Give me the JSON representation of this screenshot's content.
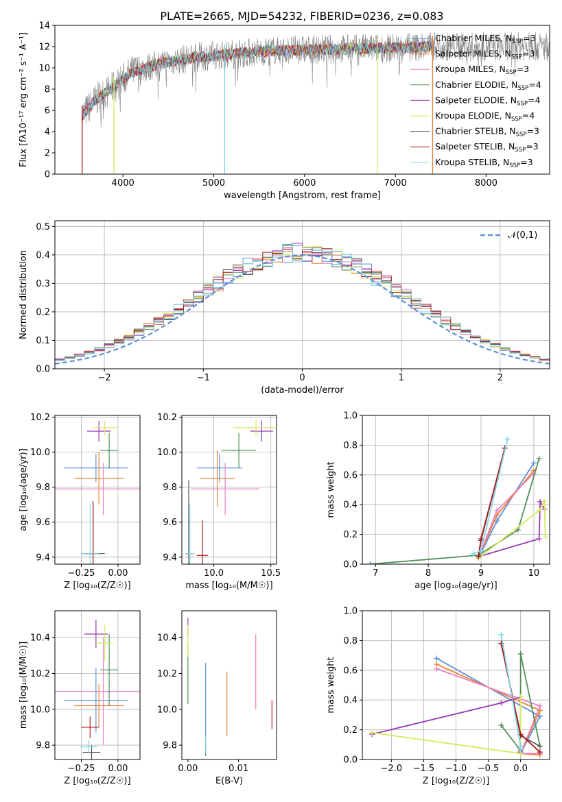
{
  "figure": {
    "title": "PLATE=2665, MJD=54232, FIBERID=0236, z=0.083"
  },
  "chart_data": [
    {
      "id": "spectrum",
      "type": "line",
      "xlabel": "wavelength [Angstrom, rest frame]",
      "ylabel": "Flux [fλ10⁻¹⁷ erg cm⁻² s⁻¹ A⁻¹]",
      "xlim": [
        3250,
        8700
      ],
      "ylim": [
        0,
        14
      ],
      "xticks": [
        4000,
        5000,
        6000,
        7000,
        8000
      ],
      "yticks": [
        0,
        2,
        4,
        6,
        8,
        10,
        12,
        14
      ],
      "grid": false,
      "legend_placement": "right",
      "continuum": [
        [
          3550,
          5.5
        ],
        [
          3700,
          7.0
        ],
        [
          3900,
          8.2
        ],
        [
          4100,
          9.6
        ],
        [
          4400,
          10.4
        ],
        [
          4800,
          11.0
        ],
        [
          5200,
          11.3
        ],
        [
          5600,
          11.6
        ],
        [
          6000,
          11.7
        ],
        [
          6500,
          11.8
        ],
        [
          7000,
          11.9
        ],
        [
          7400,
          12.0
        ]
      ],
      "observed_range": [
        3550,
        9000
      ],
      "model_range": [
        3550,
        7420
      ],
      "drop_lines": [
        3550,
        3900,
        5120,
        6800,
        7410
      ],
      "series": [
        {
          "name": "Chabrier MILES, N$_{SSP}$=3",
          "color": "#5b8fd9",
          "label": "Chabrier MILES, N",
          "sub": "SSP",
          "suffix": "=3"
        },
        {
          "name": "Salpeter MILES, N$_{SSP}$=3",
          "color": "#ee7f2d",
          "label": "Salpeter MILES, N",
          "sub": "SSP",
          "suffix": "=3"
        },
        {
          "name": "Kroupa MILES, N$_{SSP}$=3",
          "color": "#ef7fbf",
          "label": "Kroupa MILES, N",
          "sub": "SSP",
          "suffix": "=3"
        },
        {
          "name": "Chabrier ELODIE, N$_{SSP}$=4",
          "color": "#4f8f59",
          "label": "Chabrier ELODIE, N",
          "sub": "SSP",
          "suffix": "=4"
        },
        {
          "name": "Salpeter ELODIE, N$_{SSP}$=4",
          "color": "#9a36b0",
          "label": "Salpeter ELODIE, N",
          "sub": "SSP",
          "suffix": "=4"
        },
        {
          "name": "Kroupa ELODIE, N$_{SSP}$=4",
          "color": "#d6e85a",
          "label": "Kroupa ELODIE, N",
          "sub": "SSP",
          "suffix": "=4"
        },
        {
          "name": "Chabrier STELIB, N$_{SSP}$=3",
          "color": "#555555",
          "label": "Chabrier STELIB, N",
          "sub": "SSP",
          "suffix": "=3"
        },
        {
          "name": "Salpeter STELIB, N$_{SSP}$=3",
          "color": "#b01818",
          "label": "Salpeter STELIB, N",
          "sub": "SSP",
          "suffix": "=3"
        },
        {
          "name": "Kroupa STELIB, N$_{SSP}$=3",
          "color": "#7fd6e6",
          "label": "Kroupa STELIB, N",
          "sub": "SSP",
          "suffix": "=3"
        }
      ]
    },
    {
      "id": "residuals",
      "type": "line",
      "xlabel": "(data-model)/error",
      "ylabel": "Normed distribution",
      "xlim": [
        -2.5,
        2.5
      ],
      "ylim": [
        0,
        0.52
      ],
      "xticks": [
        -2,
        -1,
        0,
        1,
        2
      ],
      "yticks": [
        0.0,
        0.1,
        0.2,
        0.3,
        0.4,
        0.5
      ],
      "grid": true,
      "legend_placement": "top-right",
      "legend": [
        {
          "name": "𝒩(0,1)",
          "color": "#5b8fd9",
          "dash": true
        }
      ],
      "bin_width": 0.1
    },
    {
      "id": "Z-age",
      "type": "scatter",
      "xlabel": "Z [log₁₀(Z/Z☉)]",
      "ylabel": "age  [log₁₀(age/yr)]",
      "xlim": [
        -0.43,
        0.15
      ],
      "ylim": [
        9.36,
        10.21
      ],
      "xticks": [
        -0.25,
        0.0
      ],
      "yticks": [
        9.4,
        9.6,
        9.8,
        10.0,
        10.2
      ],
      "grid": true,
      "points": [
        {
          "color": "#5b8fd9",
          "x": -0.15,
          "y": 9.91,
          "xerr": 0.22,
          "yerr": 0.08
        },
        {
          "color": "#ee7f2d",
          "x": -0.13,
          "y": 9.85,
          "xerr": 0.17,
          "yerr": 0.15
        },
        {
          "color": "#ef7fbf",
          "x": -0.1,
          "y": 9.79,
          "xerr": 0.35,
          "yerr": 0.15
        },
        {
          "color": "#4f8f59",
          "x": -0.06,
          "y": 10.01,
          "xerr": 0.06,
          "yerr": 0.1
        },
        {
          "color": "#9a36b0",
          "x": -0.13,
          "y": 10.12,
          "xerr": 0.08,
          "yerr": 0.06
        },
        {
          "color": "#d6e85a",
          "x": -0.09,
          "y": 10.14,
          "xerr": 0.08,
          "yerr": 0.04
        },
        {
          "color": "#555555",
          "x": -0.17,
          "y": 9.42,
          "xerr": 0.08,
          "yerr": 0.3
        },
        {
          "color": "#b01818",
          "x": -0.17,
          "y": 9.42,
          "xerr": 0.04,
          "yerr": 0.3
        },
        {
          "color": "#7fd6e6",
          "x": -0.19,
          "y": 9.42,
          "xerr": 0.06,
          "yerr": 0.28
        }
      ]
    },
    {
      "id": "mass-age",
      "type": "scatter",
      "xlabel": "mass [log₁₀(M/M☉)]",
      "ylabel": "",
      "xlim": [
        9.72,
        10.55
      ],
      "ylim": [
        9.36,
        10.21
      ],
      "xticks": [
        10.0,
        10.5
      ],
      "yticks": [
        9.4,
        9.6,
        9.8,
        10.0,
        10.2
      ],
      "grid": true,
      "points": [
        {
          "color": "#5b8fd9",
          "x": 10.05,
          "y": 9.91,
          "xerr": 0.2,
          "yerr": 0.08
        },
        {
          "color": "#ee7f2d",
          "x": 10.03,
          "y": 9.85,
          "xerr": 0.15,
          "yerr": 0.16
        },
        {
          "color": "#ef7fbf",
          "x": 10.1,
          "y": 9.79,
          "xerr": 0.3,
          "yerr": 0.15
        },
        {
          "color": "#4f8f59",
          "x": 10.22,
          "y": 10.01,
          "xerr": 0.15,
          "yerr": 0.1
        },
        {
          "color": "#9a36b0",
          "x": 10.42,
          "y": 10.12,
          "xerr": 0.1,
          "yerr": 0.06
        },
        {
          "color": "#d6e85a",
          "x": 10.37,
          "y": 10.14,
          "xerr": 0.2,
          "yerr": 0.05
        },
        {
          "color": "#555555",
          "x": 9.78,
          "y": 9.42,
          "xerr": 0.03,
          "yerr": 0.42
        },
        {
          "color": "#b01818",
          "x": 9.9,
          "y": 9.41,
          "xerr": 0.05,
          "yerr": 0.2
        },
        {
          "color": "#7fd6e6",
          "x": 9.79,
          "y": 9.42,
          "xerr": 0.04,
          "yerr": 0.28
        }
      ]
    },
    {
      "id": "age-weight",
      "type": "line",
      "xlabel": "age  [log₁₀(age/yr)]",
      "ylabel": "mass weight",
      "xlim": [
        6.75,
        10.3
      ],
      "ylim": [
        0,
        1.0
      ],
      "xticks": [
        7,
        8,
        9,
        10
      ],
      "yticks": [
        0.0,
        0.2,
        0.4,
        0.6,
        0.8,
        1.0
      ],
      "grid": true,
      "series": [
        {
          "color": "#5b8fd9",
          "x": [
            8.95,
            9.3,
            10.0
          ],
          "y": [
            0.04,
            0.29,
            0.68
          ]
        },
        {
          "color": "#ee7f2d",
          "x": [
            8.95,
            9.3,
            10.0
          ],
          "y": [
            0.04,
            0.33,
            0.63
          ]
        },
        {
          "color": "#ef7fbf",
          "x": [
            8.95,
            9.3,
            10.0
          ],
          "y": [
            0.04,
            0.36,
            0.61
          ]
        },
        {
          "color": "#4f8f59",
          "x": [
            6.9,
            8.95,
            9.7,
            10.1
          ],
          "y": [
            0.0,
            0.06,
            0.23,
            0.71
          ]
        },
        {
          "color": "#9a36b0",
          "x": [
            8.95,
            10.1,
            10.12,
            10.2
          ],
          "y": [
            0.05,
            0.17,
            0.42,
            0.37
          ]
        },
        {
          "color": "#d6e85a",
          "x": [
            8.95,
            10.1,
            10.2,
            10.22
          ],
          "y": [
            0.04,
            0.36,
            0.42,
            0.18
          ]
        },
        {
          "color": "#555555",
          "x": [
            8.95,
            9.0,
            9.45
          ],
          "y": [
            0.05,
            0.16,
            0.78
          ]
        },
        {
          "color": "#b01818",
          "x": [
            8.95,
            9.0,
            9.45
          ],
          "y": [
            0.05,
            0.17,
            0.78
          ]
        },
        {
          "color": "#7fd6e6",
          "x": [
            8.85,
            9.0,
            9.5
          ],
          "y": [
            0.07,
            0.09,
            0.84
          ]
        }
      ]
    },
    {
      "id": "Z-mass",
      "type": "scatter",
      "xlabel": "Z [log₁₀(Z/Z☉)]",
      "ylabel": "mass [log₁₀(M/M☉)]",
      "xlim": [
        -0.43,
        0.15
      ],
      "ylim": [
        9.72,
        10.55
      ],
      "xticks": [
        -0.25,
        0.0
      ],
      "yticks": [
        9.8,
        10.0,
        10.2,
        10.4
      ],
      "grid": true,
      "points": [
        {
          "color": "#5b8fd9",
          "x": -0.15,
          "y": 10.05,
          "xerr": 0.22,
          "yerr": 0.18
        },
        {
          "color": "#ee7f2d",
          "x": -0.13,
          "y": 10.02,
          "xerr": 0.17,
          "yerr": 0.12
        },
        {
          "color": "#ef7fbf",
          "x": -0.1,
          "y": 10.1,
          "xerr": 0.33,
          "yerr": 0.3
        },
        {
          "color": "#4f8f59",
          "x": -0.06,
          "y": 10.22,
          "xerr": 0.06,
          "yerr": 0.2
        },
        {
          "color": "#9a36b0",
          "x": -0.15,
          "y": 10.42,
          "xerr": 0.08,
          "yerr": 0.08
        },
        {
          "color": "#d6e85a",
          "x": -0.09,
          "y": 10.37,
          "xerr": 0.06,
          "yerr": 0.1
        },
        {
          "color": "#555555",
          "x": -0.18,
          "y": 9.76,
          "xerr": 0.06,
          "yerr": 0.04
        },
        {
          "color": "#b01818",
          "x": -0.19,
          "y": 9.9,
          "xerr": 0.06,
          "yerr": 0.06
        },
        {
          "color": "#7fd6e6",
          "x": -0.2,
          "y": 9.79,
          "xerr": 0.06,
          "yerr": 0.04
        }
      ]
    },
    {
      "id": "ebv-mass",
      "type": "scatter",
      "xlabel": "E(B-V)",
      "ylabel": "",
      "xlim": [
        -0.0012,
        0.0175
      ],
      "ylim": [
        9.72,
        10.55
      ],
      "xticks": [
        0.0,
        0.01
      ],
      "xticklabels": [
        "0.00",
        "0.01"
      ],
      "yticks": [
        9.8,
        10.0,
        10.2,
        10.4
      ],
      "grid": false,
      "points": [
        {
          "color": "#5b8fd9",
          "x": 0.0035,
          "y": 10.02,
          "xerr": 0,
          "yerr": 0.24
        },
        {
          "color": "#ee7f2d",
          "x": 0.0077,
          "y": 10.03,
          "xerr": 0,
          "yerr": 0.18
        },
        {
          "color": "#ef7fbf",
          "x": 0.0134,
          "y": 10.21,
          "xerr": 0,
          "yerr": 0.21
        },
        {
          "color": "#4f8f59",
          "x": 0.0,
          "y": 10.2,
          "xerr": 0,
          "yerr": 0.17
        },
        {
          "color": "#9a36b0",
          "x": 0.0,
          "y": 10.46,
          "xerr": 0,
          "yerr": 0.05
        },
        {
          "color": "#d6e85a",
          "x": 0.0,
          "y": 10.38,
          "xerr": 0,
          "yerr": 0.09
        },
        {
          "color": "#555555",
          "x": 0.0035,
          "y": 9.78,
          "xerr": 0,
          "yerr": 0.04
        },
        {
          "color": "#b01818",
          "x": 0.0166,
          "y": 9.97,
          "xerr": 0,
          "yerr": 0.08
        },
        {
          "color": "#7fd6e6",
          "x": 0.0035,
          "y": 9.8,
          "xerr": 0,
          "yerr": 0.05
        }
      ]
    },
    {
      "id": "Z-weight",
      "type": "line",
      "xlabel": "Z [log₁₀(Z/Z☉)]",
      "ylabel": "mass weight",
      "xlim": [
        -2.45,
        0.45
      ],
      "ylim": [
        0,
        1.0
      ],
      "xticks": [
        -2.0,
        -1.5,
        -1.0,
        -0.5,
        0.0
      ],
      "yticks": [
        0.0,
        0.2,
        0.4,
        0.6,
        0.8,
        1.0
      ],
      "grid": true,
      "series": [
        {
          "color": "#5b8fd9",
          "x": [
            -1.3,
            0.3,
            0.0,
            0.3
          ],
          "y": [
            0.68,
            0.29,
            0.04,
            0.04
          ]
        },
        {
          "color": "#ee7f2d",
          "x": [
            -1.3,
            0.3,
            0.0,
            0.3
          ],
          "y": [
            0.64,
            0.33,
            0.04,
            0.03
          ]
        },
        {
          "color": "#ef7fbf",
          "x": [
            -1.3,
            0.3,
            0.0,
            0.3
          ],
          "y": [
            0.61,
            0.36,
            0.04,
            0.04
          ]
        },
        {
          "color": "#4f8f59",
          "x": [
            -0.3,
            0.0,
            0.0,
            0.3
          ],
          "y": [
            0.23,
            0.06,
            0.71,
            0.09
          ]
        },
        {
          "color": "#9a36b0",
          "x": [
            -2.3,
            -0.3,
            0.0,
            0.0
          ],
          "y": [
            0.17,
            0.38,
            0.42,
            0.05
          ]
        },
        {
          "color": "#d6e85a",
          "x": [
            -2.3,
            0.0,
            0.0,
            0.0
          ],
          "y": [
            0.18,
            0.04,
            0.42,
            0.36
          ]
        },
        {
          "color": "#555555",
          "x": [
            -0.3,
            0.0,
            0.3
          ],
          "y": [
            0.78,
            0.16,
            0.09
          ]
        },
        {
          "color": "#b01818",
          "x": [
            -0.3,
            0.0,
            0.3
          ],
          "y": [
            0.78,
            0.17,
            0.05
          ]
        },
        {
          "color": "#7fd6e6",
          "x": [
            -0.3,
            0.0,
            0.0
          ],
          "y": [
            0.84,
            0.09,
            0.07
          ]
        }
      ]
    }
  ]
}
